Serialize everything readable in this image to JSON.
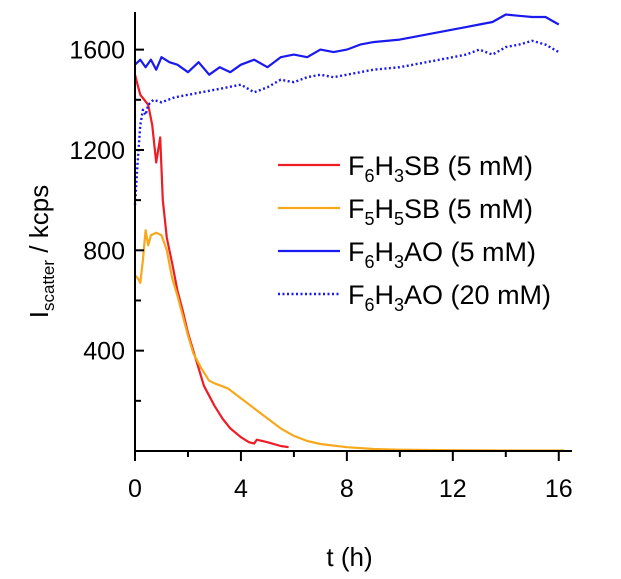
{
  "chart_data": {
    "type": "line",
    "xlabel": "t (h)",
    "ylabel_main": "I",
    "ylabel_sub": "scatter",
    "ylabel_rest": " / kcps",
    "xlim": [
      0,
      16.5
    ],
    "ylim": [
      0,
      1750
    ],
    "x_ticks": [
      0,
      4,
      8,
      12,
      16
    ],
    "y_ticks": [
      400,
      800,
      1200,
      1600
    ],
    "legend_placement": "center-right",
    "series": [
      {
        "key": "sb6",
        "label_parts": [
          [
            "F",
            ""
          ],
          [
            "6",
            "sub"
          ],
          [
            "H",
            ""
          ],
          [
            "3",
            "sub"
          ],
          [
            "SB (5 mM)",
            ""
          ]
        ],
        "color": "#ee1c25",
        "dash": "solid",
        "points": [
          [
            0,
            1500
          ],
          [
            0.1,
            1460
          ],
          [
            0.2,
            1420
          ],
          [
            0.35,
            1400
          ],
          [
            0.5,
            1380
          ],
          [
            0.65,
            1300
          ],
          [
            0.8,
            1150
          ],
          [
            0.95,
            1250
          ],
          [
            1.05,
            1000
          ],
          [
            1.2,
            850
          ],
          [
            1.4,
            750
          ],
          [
            1.6,
            640
          ],
          [
            1.8,
            560
          ],
          [
            2.0,
            470
          ],
          [
            2.2,
            400
          ],
          [
            2.4,
            330
          ],
          [
            2.6,
            260
          ],
          [
            2.8,
            220
          ],
          [
            3.0,
            180
          ],
          [
            3.3,
            130
          ],
          [
            3.6,
            90
          ],
          [
            4.0,
            55
          ],
          [
            4.3,
            35
          ],
          [
            4.5,
            30
          ],
          [
            4.6,
            45
          ],
          [
            5.0,
            35
          ],
          [
            5.5,
            20
          ],
          [
            5.8,
            15
          ]
        ]
      },
      {
        "key": "sb5",
        "label_parts": [
          [
            "F",
            ""
          ],
          [
            "5",
            "sub"
          ],
          [
            "H",
            ""
          ],
          [
            "5",
            "sub"
          ],
          [
            "SB (5 mM)",
            ""
          ]
        ],
        "color": "#f7a81c",
        "dash": "solid",
        "points": [
          [
            0,
            700
          ],
          [
            0.1,
            690
          ],
          [
            0.2,
            670
          ],
          [
            0.3,
            760
          ],
          [
            0.4,
            880
          ],
          [
            0.5,
            820
          ],
          [
            0.6,
            860
          ],
          [
            0.8,
            870
          ],
          [
            1.0,
            860
          ],
          [
            1.2,
            800
          ],
          [
            1.4,
            690
          ],
          [
            1.6,
            620
          ],
          [
            1.8,
            540
          ],
          [
            2.0,
            460
          ],
          [
            2.2,
            390
          ],
          [
            2.5,
            330
          ],
          [
            2.8,
            280
          ],
          [
            3.0,
            270
          ],
          [
            3.5,
            250
          ],
          [
            4.0,
            210
          ],
          [
            4.5,
            170
          ],
          [
            5.0,
            130
          ],
          [
            5.5,
            90
          ],
          [
            6.0,
            60
          ],
          [
            6.5,
            40
          ],
          [
            7.0,
            28
          ],
          [
            8.0,
            15
          ],
          [
            9.0,
            8
          ],
          [
            10.0,
            5
          ],
          [
            12.0,
            3
          ],
          [
            14.0,
            2
          ],
          [
            16.2,
            2
          ]
        ]
      },
      {
        "key": "ao5",
        "label_parts": [
          [
            "F",
            ""
          ],
          [
            "6",
            "sub"
          ],
          [
            "H",
            ""
          ],
          [
            "3",
            "sub"
          ],
          [
            "AO (5 mM)",
            ""
          ]
        ],
        "color": "#1a1aee",
        "dash": "solid",
        "points": [
          [
            0,
            1540
          ],
          [
            0.2,
            1560
          ],
          [
            0.4,
            1530
          ],
          [
            0.6,
            1560
          ],
          [
            0.8,
            1520
          ],
          [
            1.0,
            1570
          ],
          [
            1.3,
            1550
          ],
          [
            1.6,
            1540
          ],
          [
            2.0,
            1510
          ],
          [
            2.4,
            1550
          ],
          [
            2.8,
            1500
          ],
          [
            3.2,
            1530
          ],
          [
            3.6,
            1510
          ],
          [
            4.0,
            1540
          ],
          [
            4.5,
            1560
          ],
          [
            5.0,
            1530
          ],
          [
            5.5,
            1570
          ],
          [
            6.0,
            1580
          ],
          [
            6.5,
            1570
          ],
          [
            7.0,
            1600
          ],
          [
            7.5,
            1590
          ],
          [
            8.0,
            1600
          ],
          [
            8.5,
            1620
          ],
          [
            9.0,
            1630
          ],
          [
            10.0,
            1640
          ],
          [
            10.5,
            1650
          ],
          [
            11.0,
            1660
          ],
          [
            12.0,
            1680
          ],
          [
            12.5,
            1690
          ],
          [
            13.0,
            1700
          ],
          [
            13.5,
            1710
          ],
          [
            14.0,
            1740
          ],
          [
            14.5,
            1735
          ],
          [
            15.0,
            1730
          ],
          [
            15.5,
            1730
          ],
          [
            16.0,
            1700
          ]
        ]
      },
      {
        "key": "ao20",
        "label_parts": [
          [
            "F",
            ""
          ],
          [
            "6",
            "sub"
          ],
          [
            "H",
            ""
          ],
          [
            "3",
            "sub"
          ],
          [
            "AO (20 mM)",
            ""
          ]
        ],
        "color": "#1a1aee",
        "dash": "dotted",
        "points": [
          [
            0,
            980
          ],
          [
            0.1,
            1150
          ],
          [
            0.2,
            1300
          ],
          [
            0.3,
            1360
          ],
          [
            0.4,
            1340
          ],
          [
            0.5,
            1380
          ],
          [
            0.7,
            1400
          ],
          [
            1.0,
            1390
          ],
          [
            1.5,
            1410
          ],
          [
            2.0,
            1420
          ],
          [
            2.5,
            1430
          ],
          [
            3.0,
            1440
          ],
          [
            3.5,
            1450
          ],
          [
            4.0,
            1460
          ],
          [
            4.5,
            1430
          ],
          [
            5.0,
            1450
          ],
          [
            5.5,
            1480
          ],
          [
            6.0,
            1470
          ],
          [
            6.5,
            1490
          ],
          [
            7.0,
            1500
          ],
          [
            7.5,
            1490
          ],
          [
            8.0,
            1500
          ],
          [
            8.5,
            1510
          ],
          [
            9.0,
            1520
          ],
          [
            10.0,
            1530
          ],
          [
            10.5,
            1540
          ],
          [
            11.0,
            1550
          ],
          [
            11.5,
            1560
          ],
          [
            12.0,
            1570
          ],
          [
            12.5,
            1580
          ],
          [
            13.0,
            1600
          ],
          [
            13.5,
            1580
          ],
          [
            14.0,
            1610
          ],
          [
            14.5,
            1620
          ],
          [
            15.0,
            1635
          ],
          [
            15.5,
            1620
          ],
          [
            16.0,
            1590
          ]
        ]
      }
    ]
  }
}
